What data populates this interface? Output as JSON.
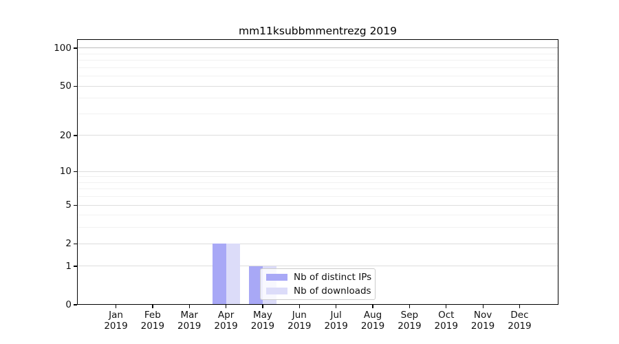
{
  "figure": {
    "background": "#ffffff"
  },
  "chart_data": {
    "type": "bar",
    "title": "mm11ksubbmmentrezg 2019",
    "categories": [
      "Jan",
      "Feb",
      "Mar",
      "Apr",
      "May",
      "Jun",
      "Jul",
      "Aug",
      "Sep",
      "Oct",
      "Nov",
      "Dec"
    ],
    "x_year_label": "2019",
    "series": [
      {
        "name": "Nb of distinct IPs",
        "color": "#a8a8f6",
        "values": [
          0,
          0,
          0,
          2,
          1,
          0,
          0,
          0,
          0,
          0,
          0,
          0
        ]
      },
      {
        "name": "Nb of downloads",
        "color": "#dcdcf9",
        "values": [
          0,
          0,
          0,
          2,
          1,
          0,
          0,
          0,
          0,
          0,
          0,
          0
        ]
      }
    ],
    "yaxis": {
      "scale": "log1p",
      "major_ticks": [
        0,
        1,
        2,
        5,
        10,
        20,
        50,
        100
      ],
      "minor_ticks": [
        3,
        4,
        6,
        7,
        8,
        9,
        30,
        40,
        60,
        70,
        80,
        90
      ],
      "ylim": [
        0,
        117
      ],
      "grid": true,
      "emphasized_gridline": 100
    },
    "legend": {
      "position": "lower-center",
      "entries": [
        "Nb of distinct IPs",
        "Nb of downloads"
      ]
    }
  },
  "colors": {
    "grid_minor": "#f1f1f1",
    "grid_major": "#dddddd",
    "grid_emph": "#bcbcbc",
    "spine": "#000000",
    "text": "#111111"
  }
}
